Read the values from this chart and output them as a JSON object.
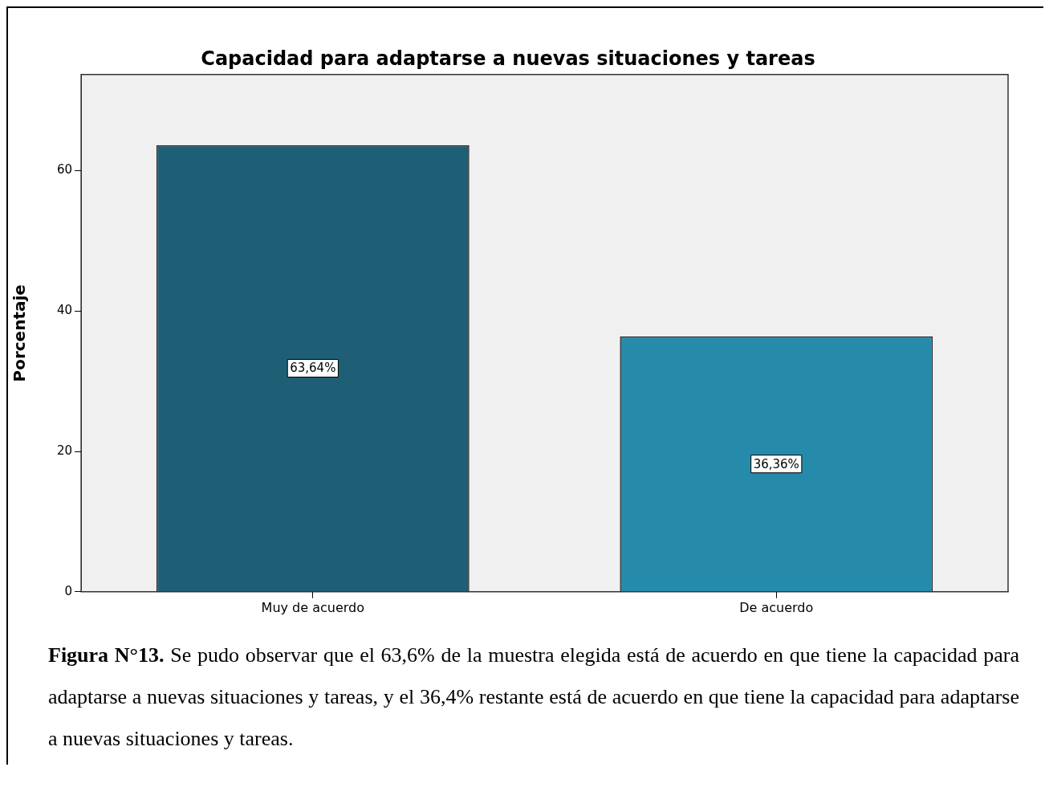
{
  "chart_data": {
    "type": "bar",
    "title": "Capacidad para adaptarse a nuevas situaciones y tareas",
    "ylabel": "Porcentaje",
    "categories": [
      "Muy de acuerdo",
      "De acuerdo"
    ],
    "values": [
      63.64,
      36.36
    ],
    "colors": [
      "#1f5f75",
      "#268bab"
    ],
    "value_labels": [
      "63,64%",
      "36,36%"
    ],
    "ylim": [
      0,
      73.7
    ],
    "yticks": [
      0,
      20,
      40,
      60
    ],
    "grid": false,
    "legend": false,
    "annotations": [
      "Figura N°13. Se pudo observar que el 63,6% de la muestra elegida está de acuerdo en que tiene la capacidad para adaptarse a nuevas situaciones y tareas, y el 36,4% restante está de acuerdo en que tiene la capacidad para adaptarse a nuevas situaciones y tareas."
    ]
  }
}
